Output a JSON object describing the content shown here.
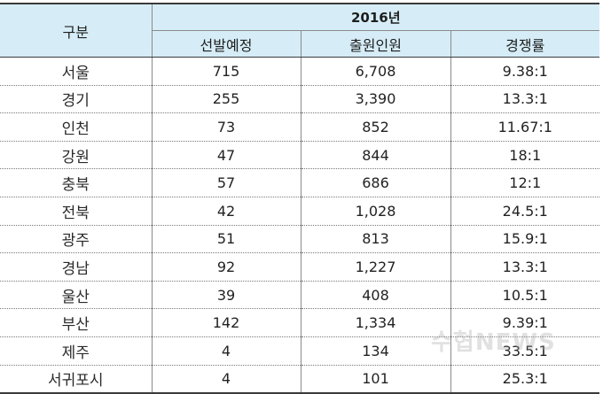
{
  "table": {
    "header_label": "구분",
    "year": "2016년",
    "columns": [
      "선발예정",
      "출원인원",
      "경쟁률"
    ],
    "rows": [
      {
        "region": "서울",
        "planned": "715",
        "applicants": "6,708",
        "ratio": "9.38:1"
      },
      {
        "region": "경기",
        "planned": "255",
        "applicants": "3,390",
        "ratio": "13.3:1"
      },
      {
        "region": "인천",
        "planned": "73",
        "applicants": "852",
        "ratio": "11.67:1"
      },
      {
        "region": "강원",
        "planned": "47",
        "applicants": "844",
        "ratio": "18:1"
      },
      {
        "region": "충북",
        "planned": "57",
        "applicants": "686",
        "ratio": "12:1"
      },
      {
        "region": "전북",
        "planned": "42",
        "applicants": "1,028",
        "ratio": "24.5:1"
      },
      {
        "region": "광주",
        "planned": "51",
        "applicants": "813",
        "ratio": "15.9:1"
      },
      {
        "region": "경남",
        "planned": "92",
        "applicants": "1,227",
        "ratio": "13.3:1"
      },
      {
        "region": "울산",
        "planned": "39",
        "applicants": "408",
        "ratio": "10.5:1"
      },
      {
        "region": "부산",
        "planned": "142",
        "applicants": "1,334",
        "ratio": "9.39:1"
      },
      {
        "region": "제주",
        "planned": "4",
        "applicants": "134",
        "ratio": "33.5:1"
      },
      {
        "region": "서귀포시",
        "planned": "4",
        "applicants": "101",
        "ratio": "25.3:1"
      }
    ]
  },
  "watermark": "수협NEWS",
  "colors": {
    "header_bg": "#d6edf7",
    "border": "#3a3a3a"
  }
}
